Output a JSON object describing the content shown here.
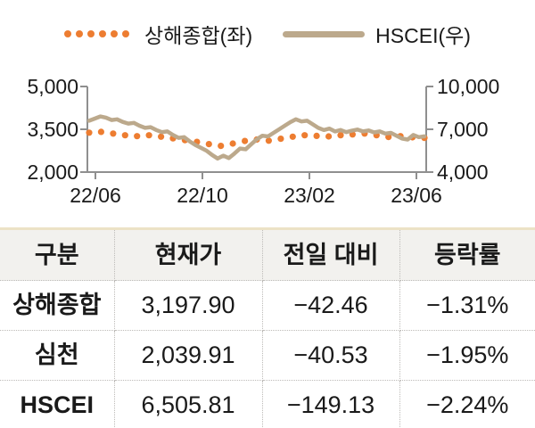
{
  "legend": {
    "items": [
      {
        "label": "상해종합(좌)",
        "style": "dotted",
        "color": "#ed7d31"
      },
      {
        "label": "HSCEI(우)",
        "style": "solid",
        "color": "#bca98c"
      }
    ]
  },
  "chart_data": {
    "type": "line",
    "title": "",
    "x_tick_labels": [
      "22/06",
      "22/10",
      "23/02",
      "23/06"
    ],
    "left_axis": {
      "tick_labels_top_to_bottom": [
        "5,000",
        "3,500",
        "2,000"
      ],
      "range": [
        2000,
        5000
      ]
    },
    "right_axis": {
      "tick_labels_top_to_bottom": [
        "10,000",
        "7,000",
        "4,000"
      ],
      "range": [
        4000,
        10000
      ]
    },
    "grid": false,
    "legend_position": "top",
    "series": [
      {
        "name": "상해종합(좌)",
        "axis": "left",
        "style": "dotted",
        "color": "#ed7d31",
        "values": [
          3380,
          3410,
          3350,
          3290,
          3260,
          3290,
          3240,
          3180,
          3120,
          3060,
          2980,
          2920,
          3000,
          3090,
          3140,
          3100,
          3170,
          3240,
          3290,
          3270,
          3250,
          3290,
          3320,
          3350,
          3290,
          3230,
          3260,
          3220,
          3198
        ]
      },
      {
        "name": "HSCEI(우)",
        "axis": "right",
        "style": "solid",
        "color": "#bca98c",
        "values": [
          7600,
          7750,
          7900,
          7820,
          7650,
          7700,
          7520,
          7400,
          7450,
          7250,
          7100,
          7150,
          6950,
          6800,
          6850,
          6600,
          6400,
          6450,
          6150,
          5900,
          5700,
          5500,
          5200,
          4950,
          5150,
          4980,
          5300,
          5650,
          5600,
          5950,
          6300,
          6550,
          6500,
          6750,
          7000,
          7250,
          7500,
          7700,
          7550,
          7600,
          7350,
          7100,
          6950,
          7050,
          6850,
          6950,
          6800,
          6900,
          6980,
          6850,
          6920,
          6780,
          6850,
          6700,
          6750,
          6550,
          6350,
          6280,
          6600,
          6450,
          6506
        ]
      }
    ]
  },
  "table": {
    "headers": [
      "구분",
      "현재가",
      "전일 대비",
      "등락률"
    ],
    "rows": [
      {
        "name": "상해종합",
        "price": "3,197.90",
        "change": "−42.46",
        "pct": "−1.31%"
      },
      {
        "name": "심천",
        "price": "2,039.91",
        "change": "−40.53",
        "pct": "−1.95%"
      },
      {
        "name": "HSCEI",
        "price": "6,505.81",
        "change": "−149.13",
        "pct": "−2.24%"
      }
    ]
  }
}
